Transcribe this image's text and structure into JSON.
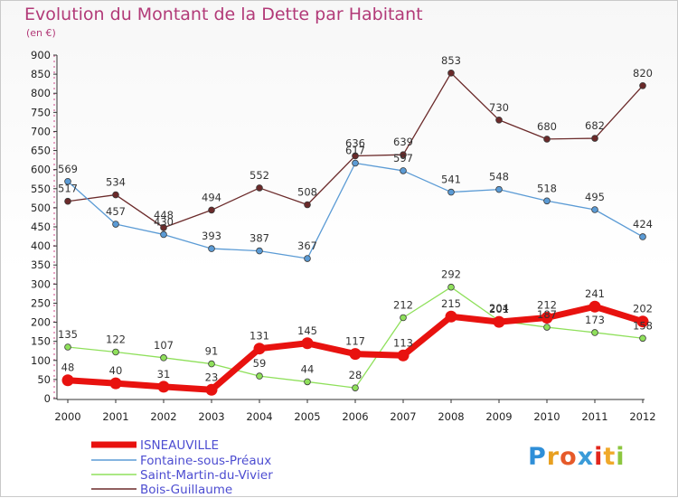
{
  "chart_data": {
    "type": "line",
    "title": "Evolution du Montant de la Dette par Habitant",
    "subtitle": "(en €)",
    "categories": [
      "2000",
      "2001",
      "2002",
      "2003",
      "2004",
      "2005",
      "2006",
      "2007",
      "2008",
      "2009",
      "2010",
      "2011",
      "2012"
    ],
    "ylim": [
      0,
      900
    ],
    "yticks": [
      0,
      50,
      100,
      150,
      200,
      250,
      300,
      350,
      400,
      450,
      500,
      550,
      600,
      650,
      700,
      750,
      800,
      850,
      900
    ],
    "grid": false,
    "legend_position": "bottom-left",
    "series": [
      {
        "name": "ISNEAUVILLE",
        "color": "#e8120f",
        "values": [
          48,
          40,
          31,
          23,
          131,
          145,
          117,
          113,
          215,
          201,
          212,
          241,
          202
        ]
      },
      {
        "name": "Fontaine-sous-Préaux",
        "color": "#5b9bd5",
        "values": [
          569,
          457,
          430,
          393,
          387,
          367,
          617,
          597,
          541,
          548,
          518,
          495,
          424
        ]
      },
      {
        "name": "Saint-Martin-du-Vivier",
        "color": "#8fe05b",
        "values": [
          135,
          122,
          107,
          91,
          59,
          44,
          28,
          212,
          292,
          204,
          187,
          173,
          158
        ]
      },
      {
        "name": "Bois-Guillaume",
        "color": "#6b2a2a",
        "values": [
          517,
          534,
          448,
          494,
          552,
          508,
          636,
          639,
          853,
          730,
          680,
          682,
          820
        ]
      }
    ]
  },
  "logo": {
    "text": "Proxiti",
    "letters": [
      "P",
      "r",
      "o",
      "x",
      "i",
      "t",
      "i"
    ],
    "colors": [
      "#2f8fd8",
      "#e8a020",
      "#e65a2a",
      "#3a9bd8",
      "#e2261c",
      "#f0a92a",
      "#8cc63f"
    ]
  }
}
